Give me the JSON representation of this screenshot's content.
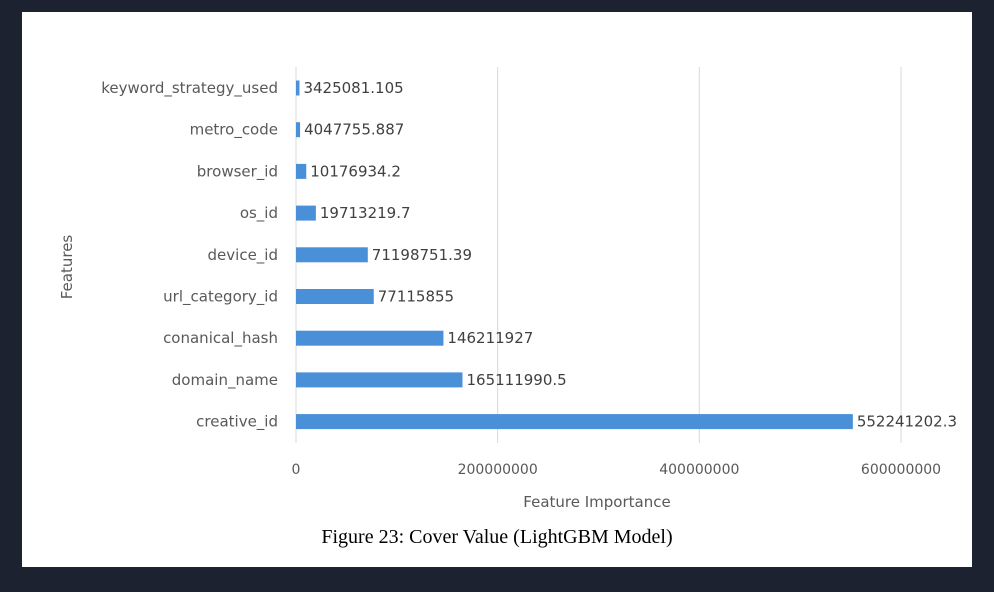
{
  "caption": "Figure 23: Cover Value (LightGBM Model)",
  "chart_data": {
    "type": "bar",
    "orientation": "horizontal",
    "categories": [
      "keyword_strategy_used",
      "metro_code",
      "browser_id",
      "os_id",
      "device_id",
      "url_category_id",
      "conanical_hash",
      "domain_name",
      "creative_id"
    ],
    "values": [
      3425081.105,
      4047755.887,
      10176934.2,
      19713219.7,
      71198751.39,
      77115855,
      146211927,
      165111990.5,
      552241202.3
    ],
    "value_labels": [
      "3425081.105",
      "4047755.887",
      "10176934.2",
      "19713219.7",
      "71198751.39",
      "77115855",
      "146211927",
      "165111990.5",
      "552241202.3"
    ],
    "xlabel": "Feature Importance",
    "ylabel": "Features",
    "xlim": [
      0,
      600000000
    ],
    "xticks": [
      0,
      200000000,
      400000000,
      600000000
    ],
    "xtick_labels": [
      "0",
      "200000000",
      "400000000",
      "600000000"
    ],
    "grid": "vertical",
    "bar_color": "#4a90d9",
    "grid_color": "#d9d9d9"
  }
}
